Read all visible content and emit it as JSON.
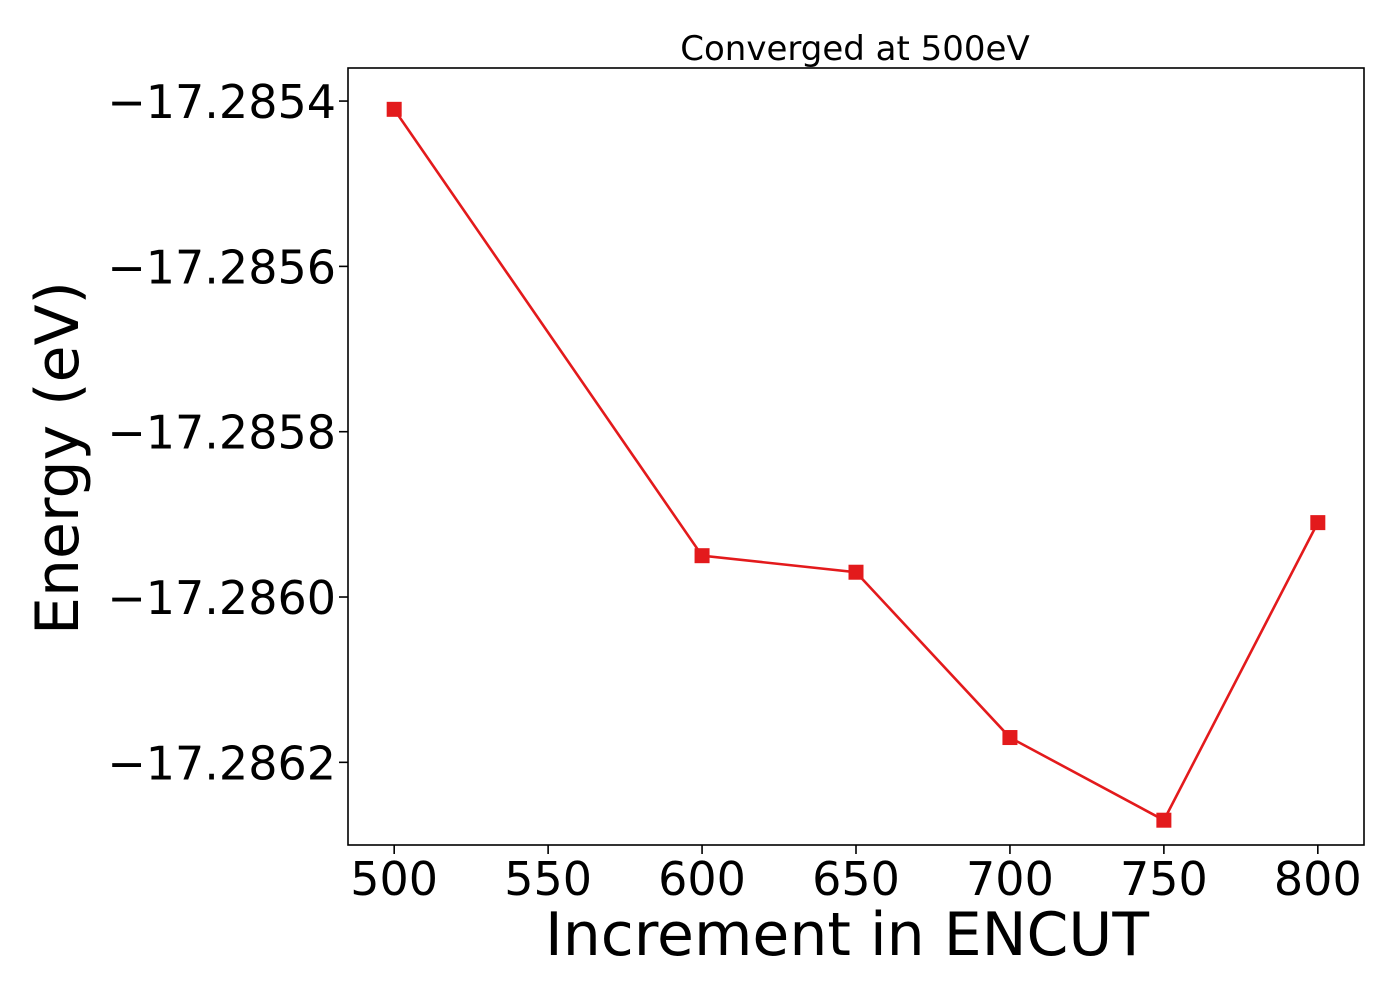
{
  "chart_data": {
    "type": "line",
    "title": "Converged at 500eV",
    "xlabel": "Increment in ENCUT",
    "ylabel": "Energy (eV)",
    "x": [
      500,
      600,
      650,
      700,
      750,
      800
    ],
    "series": [
      {
        "name": "",
        "values": [
          -17.28541,
          -17.28595,
          -17.28597,
          -17.28617,
          -17.28627,
          -17.28591
        ],
        "color": "#e31a1c",
        "marker": "square"
      }
    ],
    "xlim": [
      485,
      815
    ],
    "ylim": [
      -17.2863,
      -17.28536
    ],
    "xticks": [
      500,
      550,
      600,
      650,
      700,
      750,
      800
    ],
    "xtick_labels": [
      "500",
      "550",
      "600",
      "650",
      "700",
      "750",
      "800"
    ],
    "yticks": [
      -17.2854,
      -17.2856,
      -17.2858,
      -17.286,
      -17.2862
    ],
    "ytick_labels": [
      "−17.2854",
      "−17.2856",
      "−17.2858",
      "−17.2860",
      "−17.2862"
    ],
    "grid": false,
    "legend": false
  }
}
